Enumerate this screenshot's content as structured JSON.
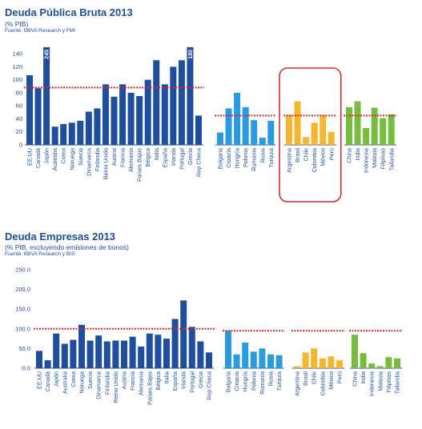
{
  "colors": {
    "developed": "#1f4e9c",
    "europe_emerging": "#2b9be0",
    "latam": "#f5b52c",
    "asia": "#76bd3e",
    "average_line": "#d42a2a",
    "highlight_box": "#d32f2f",
    "axis_text": "#1f4e9c"
  },
  "chart_data": [
    {
      "type": "bar",
      "title": "Deuda Pública Bruta 2013",
      "subtitle": "(% PIB)",
      "source": "Fuente: BBVA Research y FMI",
      "ylim": [
        0,
        150
      ],
      "yticks": [
        0,
        20,
        40,
        60,
        80,
        100,
        120,
        140
      ],
      "grid": false,
      "highlight_group": "latam",
      "groups": [
        {
          "id": "developed",
          "average": 88,
          "categories": [
            "EE.UU",
            "Canadá",
            "Japón",
            "Australia",
            "Corea",
            "Noruega",
            "Suecia",
            "Dinamarca",
            "Finlandia",
            "Reino Unido",
            "Austria",
            "Francia",
            "Alemania",
            "Países Bajos",
            "Bélgica",
            "Italia",
            "España",
            "Irlanda",
            "Portugal",
            "Grecia",
            "Rep Checa"
          ],
          "values": [
            107,
            87,
            245,
            28,
            32,
            34,
            37,
            51,
            56,
            93,
            74,
            93,
            80,
            75,
            100,
            130,
            93,
            120,
            130,
            180,
            45
          ],
          "value_labels": [
            null,
            null,
            "245",
            null,
            null,
            null,
            null,
            null,
            null,
            null,
            null,
            null,
            null,
            null,
            null,
            null,
            null,
            null,
            null,
            "180",
            null
          ]
        },
        {
          "id": "europe_emerging",
          "average": 45,
          "categories": [
            "Bulgaria",
            "Croacia",
            "Hungría",
            "Polonia",
            "Rumania",
            "Rusia",
            "Turquía"
          ],
          "values": [
            19,
            56,
            80,
            58,
            38,
            11,
            37
          ],
          "value_labels": [
            null,
            null,
            null,
            null,
            null,
            null,
            null
          ]
        },
        {
          "id": "latam",
          "average": 45,
          "categories": [
            "Argentina",
            "Brasil",
            "Chile",
            "Colombia",
            "México",
            "Perú"
          ],
          "values": [
            46,
            67,
            12,
            34,
            46,
            20
          ],
          "value_labels": [
            null,
            null,
            null,
            null,
            null,
            null
          ]
        },
        {
          "id": "asia",
          "average": 45,
          "categories": [
            "China",
            "India",
            "Indonesia",
            "Malasia",
            "Filipinas",
            "Tailandia"
          ],
          "values": [
            58,
            67,
            26,
            57,
            41,
            47
          ],
          "value_labels": [
            null,
            null,
            null,
            null,
            null,
            null
          ]
        }
      ]
    },
    {
      "type": "bar",
      "title": "Deuda Empresas 2013",
      "subtitle": "(% PIB, excluyendo emisiones de bonos)",
      "source": "Fuente: BBVA Research y BIS",
      "ylim": [
        0,
        250
      ],
      "yticks": [
        "0.0",
        "50.0",
        "100.0",
        "150.0",
        "200.0",
        "250.0"
      ],
      "grid": false,
      "groups": [
        {
          "id": "developed",
          "average": 100,
          "categories": [
            "EE.UU",
            "Canadá",
            "Japón",
            "Australia",
            "Corea",
            "Noruega",
            "Suecia",
            "Dinamarca",
            "Finlandia",
            "Reino Unido",
            "Austria",
            "Francia",
            "Alemania",
            "Países Bajos",
            "Bélgica",
            "Italia",
            "España",
            "Irlanda",
            "Portugal",
            "Grecia",
            "Rep Checa"
          ],
          "values": [
            44,
            20,
            88,
            62,
            72,
            110,
            70,
            83,
            68,
            70,
            70,
            80,
            55,
            88,
            85,
            75,
            125,
            172,
            105,
            68,
            40
          ]
        },
        {
          "id": "europe_emerging",
          "average": 95,
          "categories": [
            "Bulgaria",
            "Croacia",
            "Hungría",
            "Polonia",
            "Rumania",
            "Rusia",
            "Turquía"
          ],
          "values": [
            95,
            35,
            65,
            42,
            50,
            35,
            33
          ]
        },
        {
          "id": "latam",
          "average": 95,
          "categories": [
            "Argentina",
            "Brasil",
            "Chile",
            "Colombia",
            "México",
            "Perú"
          ],
          "values": [
            5,
            40,
            50,
            25,
            30,
            20
          ]
        },
        {
          "id": "asia",
          "average": 95,
          "categories": [
            "China",
            "India",
            "Indonesia",
            "Malasia",
            "Filipinas",
            "Tailandia"
          ],
          "values": [
            85,
            38,
            12,
            5,
            28,
            25
          ]
        }
      ]
    }
  ]
}
